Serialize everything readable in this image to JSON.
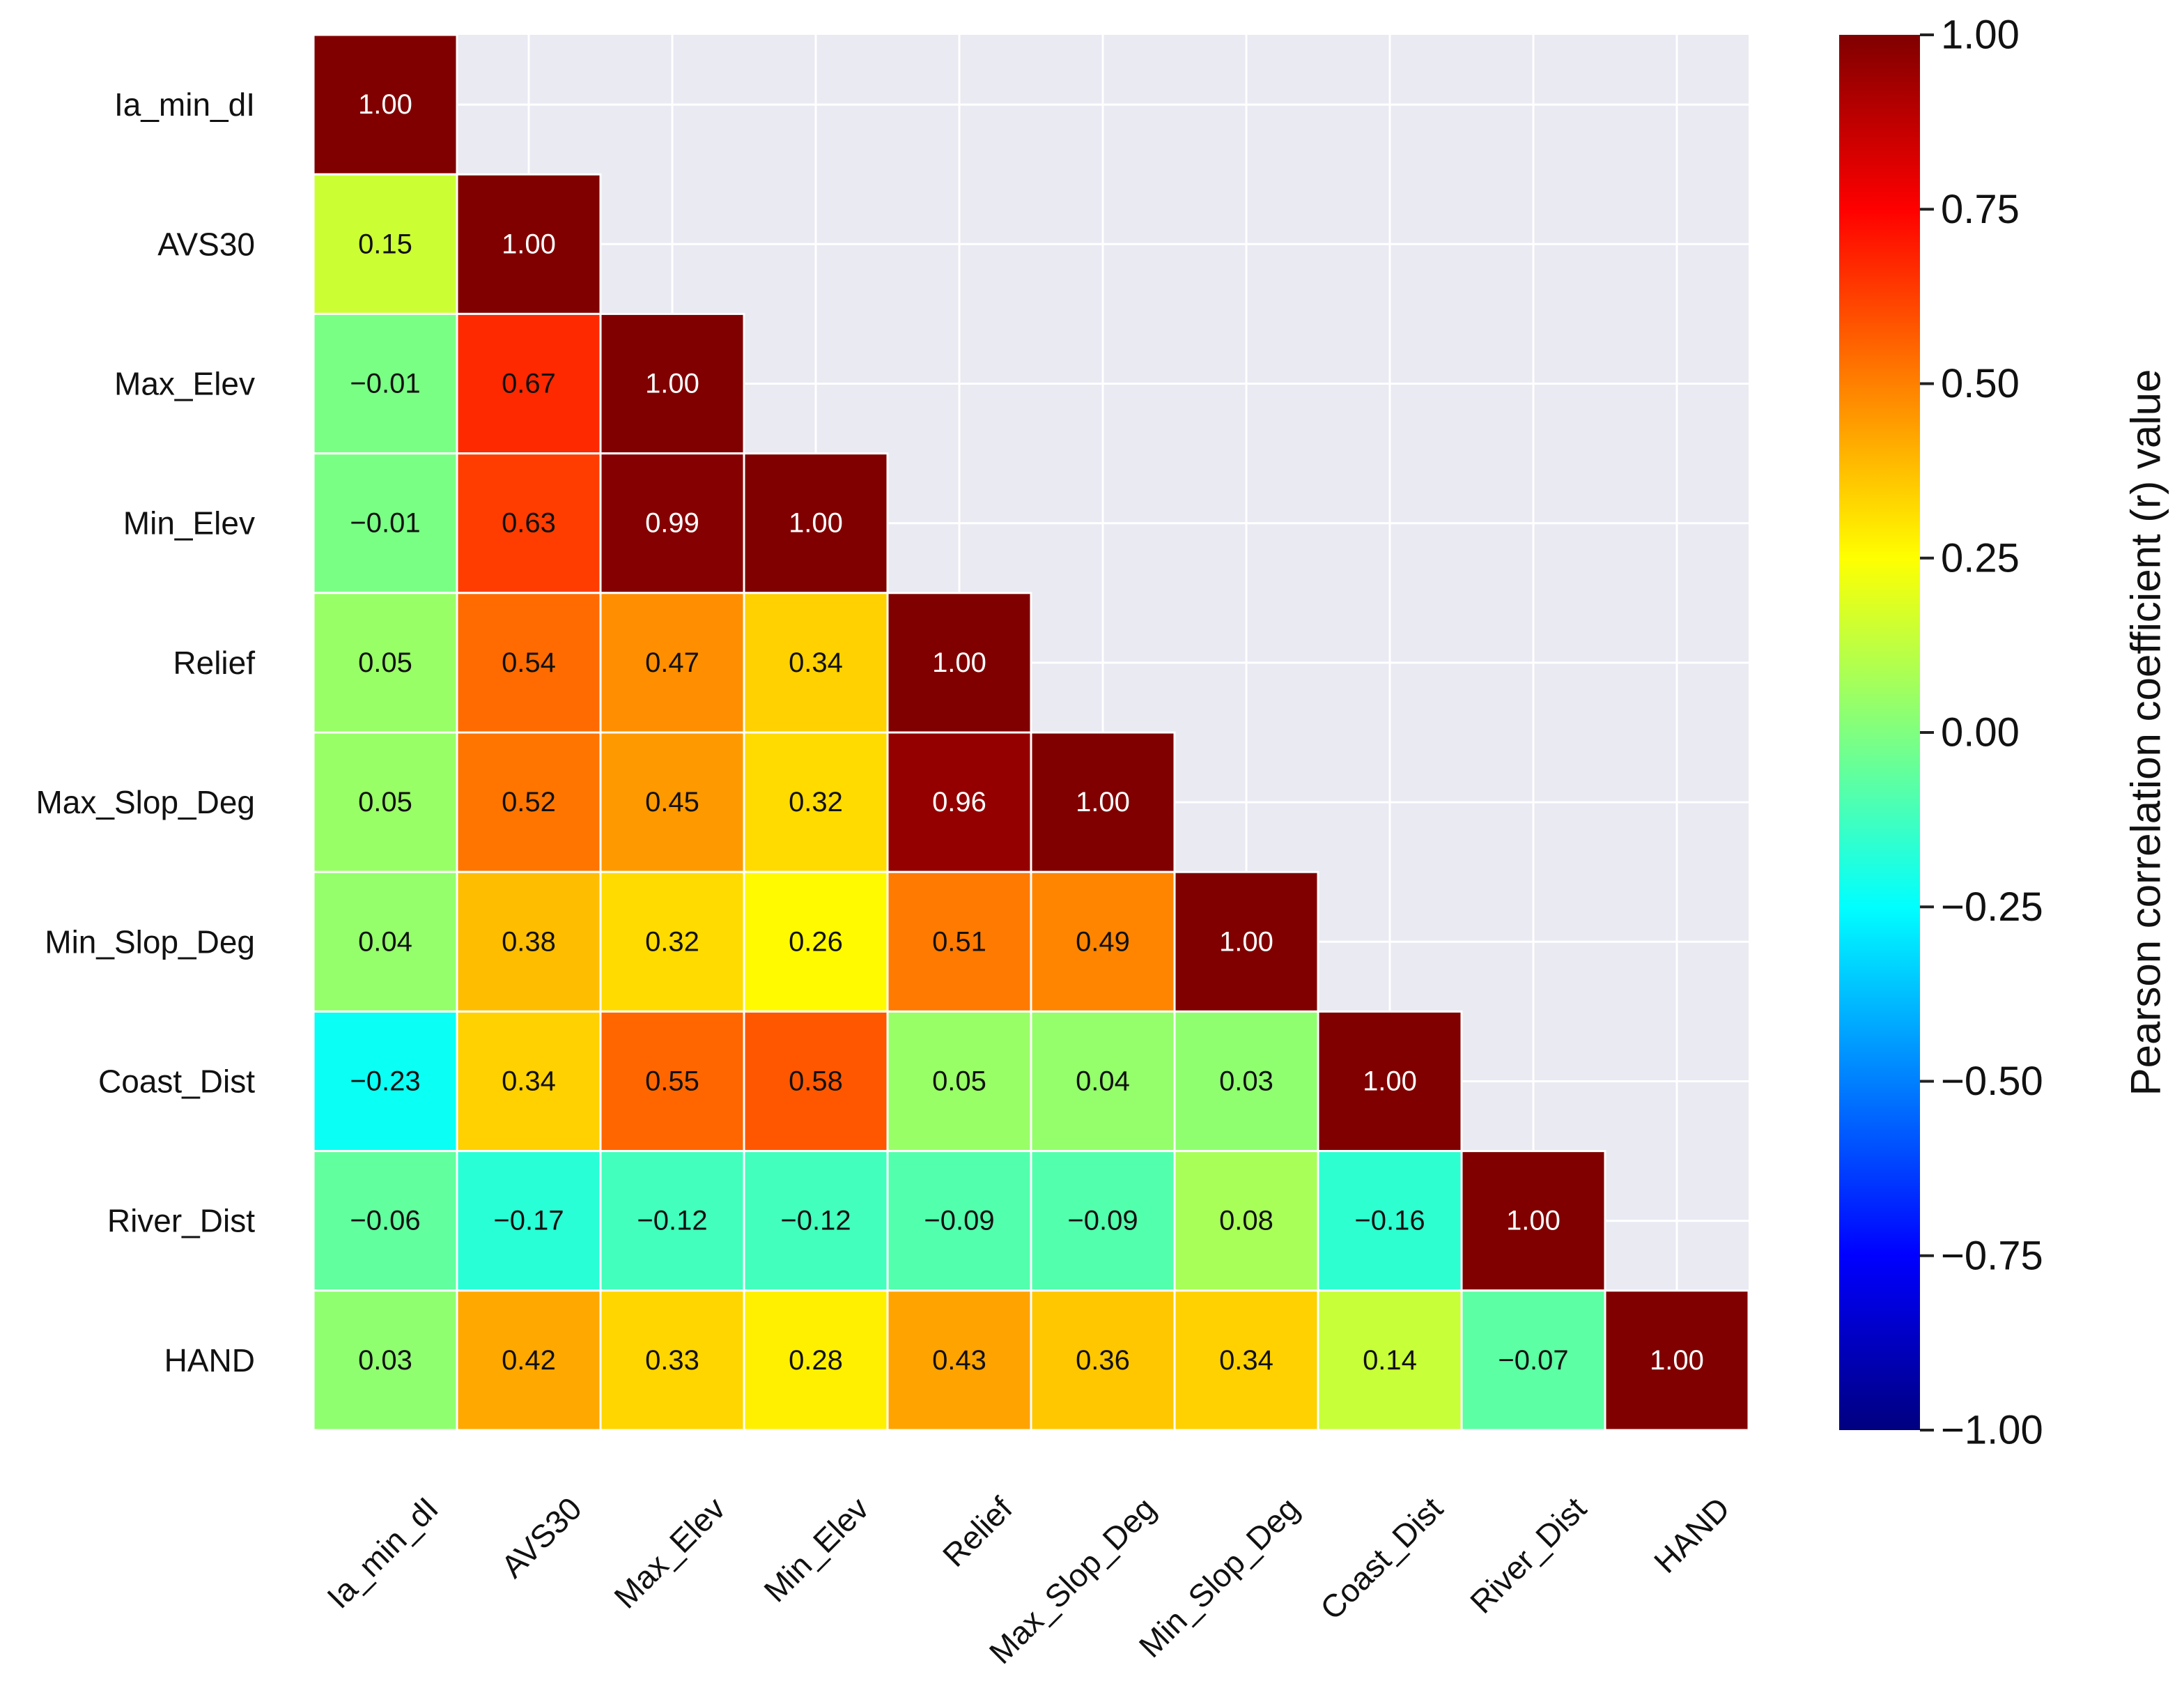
{
  "chart_data": {
    "type": "heatmap",
    "title": "",
    "variables": [
      "Ia_min_dI",
      "AVS30",
      "Max_Elev",
      "Min_Elev",
      "Relief",
      "Max_Slop_Deg",
      "Min_Slop_Deg",
      "Coast_Dist",
      "River_Dist",
      "HAND"
    ],
    "matrix": [
      [
        1.0
      ],
      [
        0.15,
        1.0
      ],
      [
        -0.01,
        0.67,
        1.0
      ],
      [
        -0.01,
        0.63,
        0.99,
        1.0
      ],
      [
        0.05,
        0.54,
        0.47,
        0.34,
        1.0
      ],
      [
        0.05,
        0.52,
        0.45,
        0.32,
        0.96,
        1.0
      ],
      [
        0.04,
        0.38,
        0.32,
        0.26,
        0.51,
        0.49,
        1.0
      ],
      [
        -0.23,
        0.34,
        0.55,
        0.58,
        0.05,
        0.04,
        0.03,
        1.0
      ],
      [
        -0.06,
        -0.17,
        -0.12,
        -0.12,
        -0.09,
        -0.09,
        0.08,
        -0.16,
        1.0
      ],
      [
        0.03,
        0.42,
        0.33,
        0.28,
        0.43,
        0.36,
        0.34,
        0.14,
        -0.07,
        1.0
      ]
    ],
    "mask": "upper-triangle",
    "colormap": "jet",
    "vmin": -1.0,
    "vmax": 1.0,
    "grid": true,
    "colorbar": {
      "label": "Pearson correlation coefficient (r) value",
      "ticks": [
        1.0,
        0.75,
        0.5,
        0.25,
        0.0,
        -0.25,
        -0.5,
        -0.75,
        -1.0
      ],
      "tick_labels": [
        "1.00",
        "0.75",
        "0.50",
        "0.25",
        "0.00",
        "−0.25",
        "−0.50",
        "−0.75",
        "−1.00"
      ]
    },
    "xlabel": "",
    "ylabel": ""
  },
  "colors": {
    "background": "#ffffff",
    "masked_area": "#e9eaf2",
    "grid_lines": "#ffffff",
    "text_dark": "#111111",
    "text_light": "#ffffff"
  }
}
